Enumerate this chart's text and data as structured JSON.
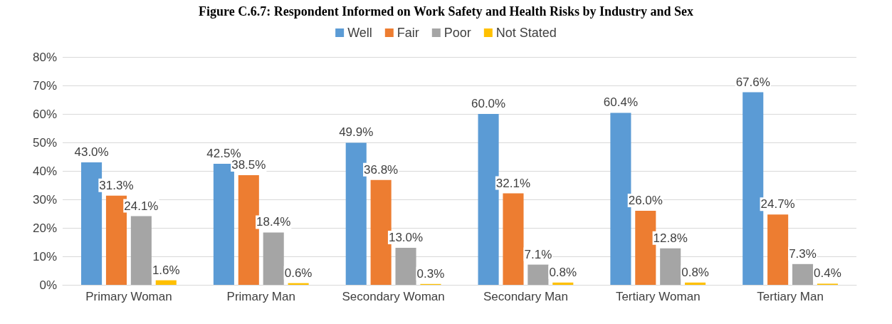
{
  "chart_data": {
    "type": "bar",
    "title": "Figure C.6.7: Respondent Informed on Work Safety and Health Risks by Industry and Sex",
    "categories": [
      "Primary Woman",
      "Primary Man",
      "Secondary Woman",
      "Secondary Man",
      "Tertiary Woman",
      "Tertiary Man"
    ],
    "series": [
      {
        "name": "Well",
        "color": "#5b9bd5",
        "values": [
          43.0,
          42.5,
          49.9,
          60.0,
          60.4,
          67.6
        ],
        "value_labels": [
          "43.0%",
          "42.5%",
          "49.9%",
          "60.0%",
          "60.4%",
          "67.6%"
        ]
      },
      {
        "name": "Fair",
        "color": "#ed7d31",
        "values": [
          31.3,
          38.5,
          36.8,
          32.1,
          26.0,
          24.7
        ],
        "value_labels": [
          "31.3%",
          "38.5%",
          "36.8%",
          "32.1%",
          "26.0%",
          "24.7%"
        ]
      },
      {
        "name": "Poor",
        "color": "#a5a5a5",
        "values": [
          24.1,
          18.4,
          13.0,
          7.1,
          12.8,
          7.3
        ],
        "value_labels": [
          "24.1%",
          "18.4%",
          "13.0%",
          "7.1%",
          "12.8%",
          "7.3%"
        ]
      },
      {
        "name": "Not Stated",
        "color": "#ffc000",
        "values": [
          1.6,
          0.6,
          0.3,
          0.8,
          0.8,
          0.4
        ],
        "value_labels": [
          "1.6%",
          "0.6%",
          "0.3%",
          "0.8%",
          "0.8%",
          "0.4%"
        ]
      }
    ],
    "ylim": [
      0,
      80
    ],
    "yticks": [
      {
        "value": 0,
        "label": "0%"
      },
      {
        "value": 10,
        "label": "10%"
      },
      {
        "value": 20,
        "label": "20%"
      },
      {
        "value": 30,
        "label": "30%"
      },
      {
        "value": 40,
        "label": "40%"
      },
      {
        "value": 50,
        "label": "50%"
      },
      {
        "value": 60,
        "label": "60%"
      },
      {
        "value": 70,
        "label": "70%"
      },
      {
        "value": 80,
        "label": "80%"
      }
    ],
    "grid": "y",
    "legend": "top"
  }
}
